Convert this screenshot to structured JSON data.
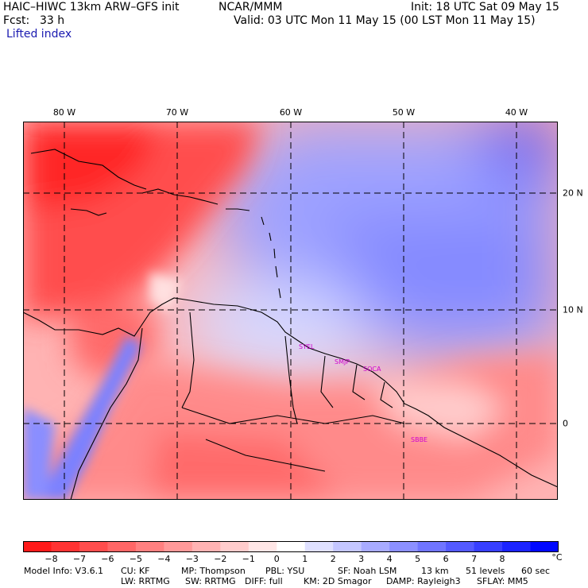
{
  "header": {
    "model": "HAIC–HIWC 13km ARW–GFS init",
    "org": "NCAR/MMM",
    "init": "Init: 18 UTC Sat 09 May 15",
    "fcst_label": "Fcst:",
    "fcst_value": "33 h",
    "valid": "Valid: 03 UTC Mon 11 May 15 (00 LST Mon 11 May 15)",
    "field": "Lifted index"
  },
  "map": {
    "lon_labels": [
      "80 W",
      "70 W",
      "60 W",
      "50 W",
      "40 W"
    ],
    "lat_labels": [
      "20 N",
      "10 N",
      "0"
    ],
    "lon_range": [
      -83.2,
      -36.0
    ],
    "lat_range": [
      -6.6,
      26.6
    ],
    "stations": [
      "SYEL",
      "SMJP",
      "SOCA",
      "SBBE"
    ]
  },
  "colorbar": {
    "ticks": [
      "−8",
      "−7",
      "−6",
      "−5",
      "−4",
      "−3",
      "−2",
      "−1",
      "0",
      "1",
      "2",
      "3",
      "4",
      "5",
      "6",
      "7",
      "8"
    ],
    "unit": "°C",
    "colors": [
      "#ff1a1a",
      "#ff3333",
      "#ff4d4d",
      "#ff6666",
      "#ff8080",
      "#ff9999",
      "#ffb3b3",
      "#ffcccc",
      "#ffe6e6",
      "#ffffff",
      "#dfe0ff",
      "#c4c6ff",
      "#a8abff",
      "#8c90ff",
      "#7075ff",
      "#545aff",
      "#383fff",
      "#1c24ff",
      "#0008ff"
    ]
  },
  "footer": {
    "line1": [
      "Model Info: V3.6.1",
      "CU: KF",
      "MP: Thompson",
      "PBL: YSU",
      "SF: Noah LSM",
      "13 km",
      "51 levels",
      "60 sec"
    ],
    "line2": [
      "LW: RRTMG",
      "SW: RRTMG",
      "DIFF: full",
      "KM: 2D Smagor",
      "DAMP: Rayleigh3",
      "SFLAY: MM5"
    ]
  }
}
